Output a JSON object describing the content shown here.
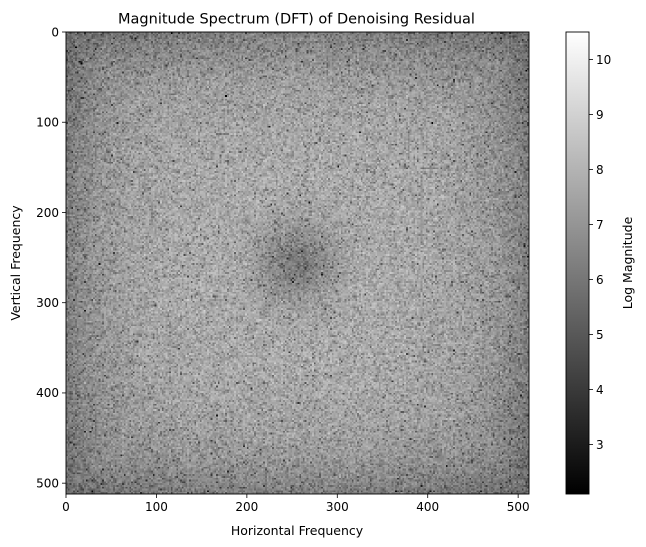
{
  "chart_data": {
    "type": "heatmap",
    "title": "Magnitude Spectrum (DFT) of Denoising Residual",
    "xlabel": "Horizontal Frequency",
    "ylabel": "Vertical Frequency",
    "xlim": [
      0,
      512
    ],
    "ylim": [
      512,
      0
    ],
    "x_ticks": [
      0,
      100,
      200,
      300,
      400,
      500
    ],
    "y_ticks": [
      0,
      100,
      200,
      300,
      400,
      500
    ],
    "colormap": "gray",
    "colorbar": {
      "label": "Log Magnitude",
      "range": [
        2.1,
        10.5
      ],
      "ticks": [
        3,
        4,
        5,
        6,
        7,
        8,
        9,
        10
      ]
    },
    "grid": false,
    "description_values": {
      "center": [
        256,
        256
      ],
      "center_level": 6.3,
      "mid_level": 7.9,
      "edge_level": 6.0
    }
  }
}
